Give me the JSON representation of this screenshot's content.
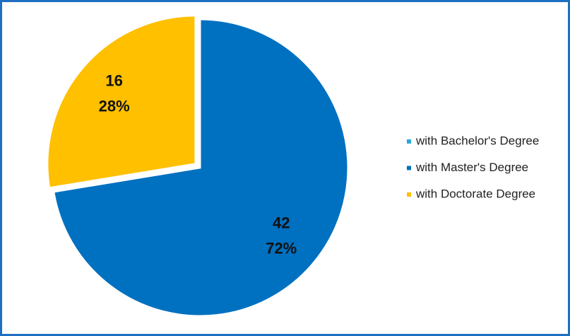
{
  "chart_data": {
    "type": "pie",
    "categories": [
      "with Bachelor's Degree",
      "with Master's Degree",
      "with Doctorate Degree"
    ],
    "values": [
      0,
      42,
      16
    ],
    "percentages": [
      0,
      72,
      28
    ],
    "percentage_labels": [
      null,
      "72%",
      "28%"
    ],
    "colors": [
      "#2aa7df",
      "#0070c0",
      "#ffc000"
    ],
    "legend": "right"
  }
}
